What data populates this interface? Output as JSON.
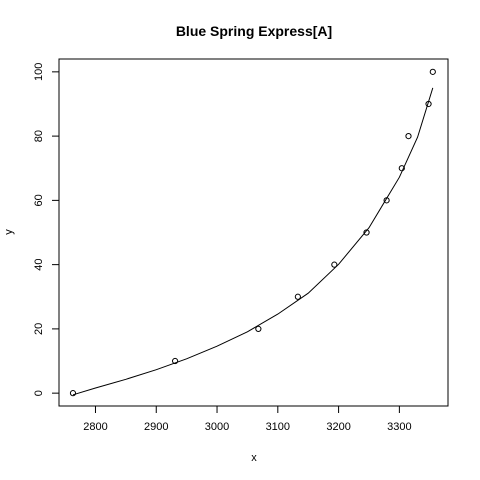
{
  "chart_data": {
    "type": "scatter",
    "title": "Blue Spring Express[A]",
    "xlabel": "x",
    "ylabel": "y",
    "xlim": [
      2740,
      3380
    ],
    "ylim": [
      -4,
      104
    ],
    "x_ticks": [
      2800,
      2900,
      3000,
      3100,
      3200,
      3300
    ],
    "y_ticks": [
      0,
      20,
      40,
      60,
      80,
      100
    ],
    "grid": false,
    "legend": "none",
    "series": [
      {
        "points": [
          {
            "x": 2763,
            "y": 0
          },
          {
            "x": 2931,
            "y": 10
          },
          {
            "x": 3068,
            "y": 20
          },
          {
            "x": 3133,
            "y": 30
          },
          {
            "x": 3193,
            "y": 40
          },
          {
            "x": 3246,
            "y": 50
          },
          {
            "x": 3279,
            "y": 60
          },
          {
            "x": 3304,
            "y": 70
          },
          {
            "x": 3315,
            "y": 80
          },
          {
            "x": 3348,
            "y": 90
          },
          {
            "x": 3355,
            "y": 100
          }
        ]
      }
    ],
    "fit_curve": [
      {
        "x": 2763,
        "y": -0.5
      },
      {
        "x": 2800,
        "y": 1.6
      },
      {
        "x": 2850,
        "y": 4.3
      },
      {
        "x": 2900,
        "y": 7.3
      },
      {
        "x": 2950,
        "y": 10.7
      },
      {
        "x": 3000,
        "y": 14.6
      },
      {
        "x": 3050,
        "y": 19.1
      },
      {
        "x": 3100,
        "y": 24.6
      },
      {
        "x": 3150,
        "y": 31.1
      },
      {
        "x": 3200,
        "y": 40.1
      },
      {
        "x": 3250,
        "y": 51.5
      },
      {
        "x": 3300,
        "y": 67.2
      },
      {
        "x": 3330,
        "y": 79.7
      },
      {
        "x": 3355,
        "y": 95.0
      }
    ]
  }
}
